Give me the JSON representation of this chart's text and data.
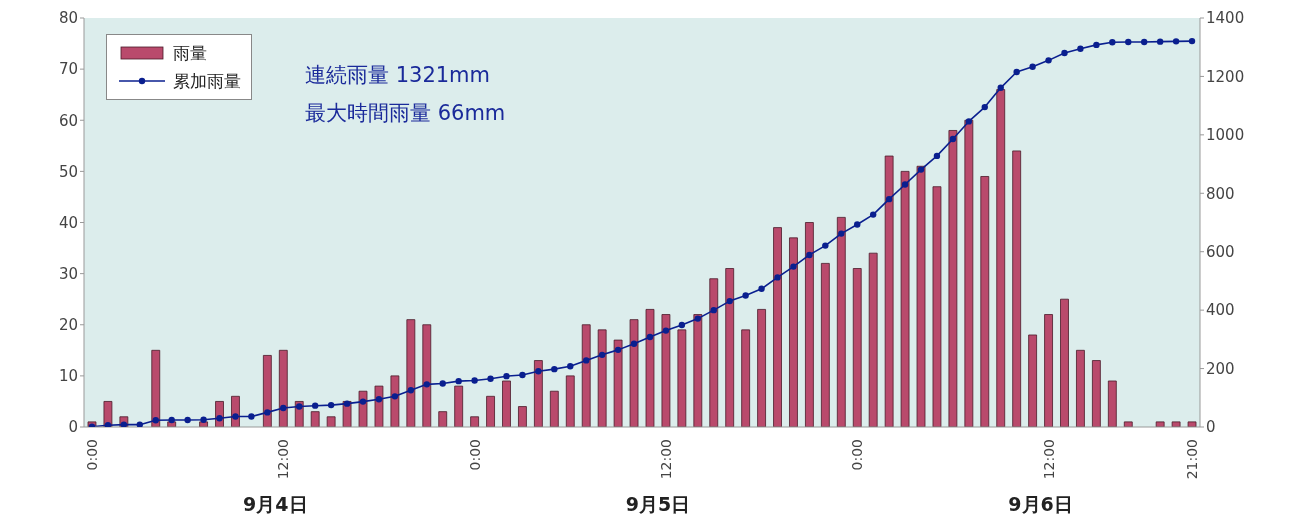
{
  "chart_data": {
    "type": "bar",
    "categories": [
      "0:00",
      null,
      null,
      null,
      null,
      null,
      null,
      null,
      null,
      null,
      null,
      null,
      "12:00",
      null,
      null,
      null,
      null,
      null,
      null,
      null,
      null,
      null,
      null,
      null,
      "0:00",
      null,
      null,
      null,
      null,
      null,
      null,
      null,
      null,
      null,
      null,
      null,
      "12:00",
      null,
      null,
      null,
      null,
      null,
      null,
      null,
      null,
      null,
      null,
      null,
      "0:00",
      null,
      null,
      null,
      null,
      null,
      null,
      null,
      null,
      null,
      null,
      null,
      "12:00",
      null,
      null,
      null,
      null,
      null,
      null,
      null,
      null,
      "21:00"
    ],
    "series": [
      {
        "name": "雨量",
        "color": "#b94a6c",
        "values": [
          1,
          5,
          2,
          0,
          15,
          1,
          0,
          1,
          5,
          6,
          0,
          14,
          15,
          5,
          3,
          2,
          5,
          7,
          8,
          10,
          21,
          20,
          3,
          8,
          2,
          6,
          9,
          4,
          13,
          7,
          10,
          20,
          19,
          17,
          21,
          23,
          22,
          19,
          22,
          29,
          31,
          19,
          23,
          39,
          37,
          40,
          32,
          41,
          31,
          34,
          53,
          50,
          51,
          47,
          58,
          60,
          49,
          66,
          54,
          18,
          22,
          25,
          15,
          13,
          9,
          1,
          0,
          1,
          1,
          1
        ]
      },
      {
        "name": "累加雨量",
        "type": "line",
        "axis": "y2",
        "color": "#0a1f8f",
        "values": [
          1,
          6,
          8,
          8,
          23,
          24,
          24,
          25,
          30,
          36,
          36,
          50,
          65,
          70,
          73,
          75,
          80,
          87,
          95,
          105,
          126,
          146,
          149,
          157,
          159,
          165,
          174,
          178,
          191,
          198,
          208,
          228,
          247,
          264,
          285,
          308,
          330,
          349,
          371,
          400,
          431,
          450,
          473,
          512,
          549,
          589,
          621,
          662,
          693,
          727,
          780,
          830,
          881,
          928,
          986,
          1046,
          1095,
          1161,
          1215,
          1233,
          1255,
          1280,
          1295,
          1308,
          1317,
          1318,
          1318,
          1319,
          1320,
          1321
        ]
      }
    ],
    "ylim": [
      0,
      80
    ],
    "yticks": [
      0,
      10,
      20,
      30,
      40,
      50,
      60,
      70,
      80
    ],
    "y2lim": [
      0,
      1400
    ],
    "y2ticks": [
      0,
      200,
      400,
      600,
      800,
      1000,
      1200,
      1400
    ],
    "annotations": [
      "連続雨量  1321mm",
      "最大時間雨量  66mm",
      "9月4日",
      "9月5日",
      "9月6日"
    ],
    "legend": "top left",
    "marker": "circle",
    "line_style": "solid",
    "grid": false
  }
}
